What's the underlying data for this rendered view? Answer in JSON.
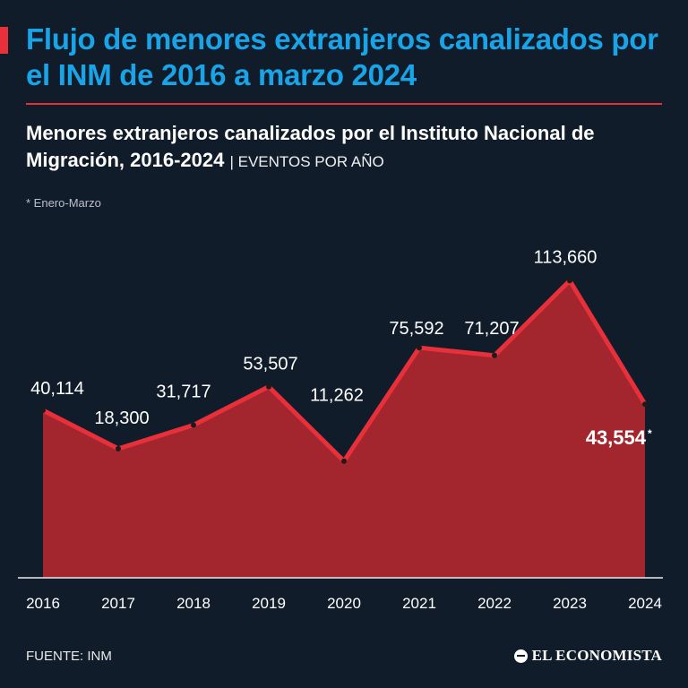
{
  "header": {
    "title": "Flujo de menores extranjeros canalizados por el INM de 2016 a marzo 2024",
    "subtitle": "Menores extranjeros canalizados por el Instituto Nacional de Migración, 2016-2024",
    "unit_label": "| EVENTOS POR AÑO",
    "note": "* Enero-Marzo"
  },
  "footer": {
    "source": "FUENTE: INM",
    "brand": "EL ECONOMISTA"
  },
  "colors": {
    "background": "#111c2a",
    "title": "#1aa4e8",
    "accent": "#e8303a",
    "area": "#a3262f",
    "line": "#e8303a"
  },
  "chart_data": {
    "type": "area",
    "title": "Menores extranjeros canalizados por el Instituto Nacional de Migración, 2016-2024",
    "xlabel": "",
    "ylabel": "Eventos por año",
    "categories": [
      "2016",
      "2017",
      "2018",
      "2019",
      "2020",
      "2021",
      "2022",
      "2023",
      "2024"
    ],
    "values": [
      40114,
      18300,
      31717,
      53507,
      11262,
      75592,
      71207,
      113660,
      43554
    ],
    "value_labels": [
      "40,114",
      "18,300",
      "31,717",
      "53,507",
      "11,262",
      "75,592",
      "71,207",
      "113,660",
      "43,554"
    ],
    "highlight_marker": "*",
    "ylim": [
      -55000,
      124000
    ],
    "grid": false,
    "legend": "none"
  }
}
